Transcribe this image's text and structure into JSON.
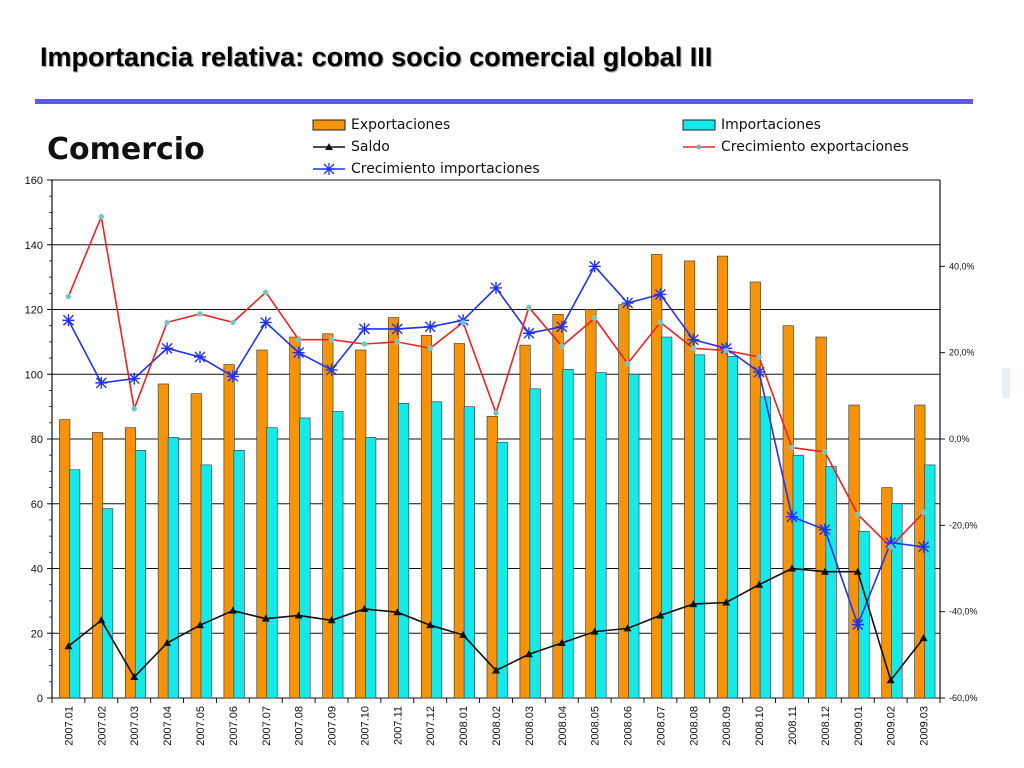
{
  "slide": {
    "title": "Importancia relativa: como socio comercial global III"
  },
  "chart_data": {
    "type": "bar",
    "title": "Comercio",
    "categories": [
      "2007.01",
      "2007.02",
      "2007.03",
      "2007.04",
      "2007.05",
      "2007.06",
      "2007.07",
      "2007.08",
      "2007.09",
      "2007.10",
      "2007.11",
      "2007.12",
      "2008.01",
      "2008.02",
      "2008.03",
      "2008.04",
      "2008.05",
      "2008.06",
      "2008.07",
      "2008.08",
      "2008.09",
      "2008.10",
      "2008.11",
      "2008.12",
      "2009.01",
      "2009.02",
      "2009.03"
    ],
    "left_axis": {
      "ylim": [
        0,
        160
      ],
      "ticks": [
        "0",
        "20",
        "40",
        "60",
        "80",
        "100",
        "120",
        "140",
        "160"
      ]
    },
    "right_axis": {
      "ylim": [
        -60,
        60
      ],
      "ticks": [
        "-60,0%",
        "-40,0%",
        "-20,0%",
        "0,0%",
        "20,0%",
        "40,0%"
      ]
    },
    "grid": true,
    "legend_position": "top",
    "series": [
      {
        "name": "Exportaciones",
        "kind": "bar",
        "axis": "left",
        "color": "#f5930b",
        "values": [
          86,
          82,
          83.5,
          97,
          94,
          103,
          107.5,
          111.5,
          112.5,
          107.5,
          117.5,
          112,
          109.5,
          87,
          109,
          118.5,
          120,
          121.5,
          137,
          135,
          136.5,
          128.5,
          115,
          111.5,
          90.5,
          65,
          90.5
        ]
      },
      {
        "name": "Importaciones",
        "kind": "bar",
        "axis": "left",
        "color": "#17e8e8",
        "values": [
          70.5,
          58.5,
          76.5,
          80.5,
          72,
          76.5,
          83.5,
          86.5,
          88.5,
          80.5,
          91,
          91.5,
          90,
          79,
          95.5,
          101.5,
          100.5,
          100,
          111.5,
          106,
          105.5,
          93,
          75,
          71.5,
          51.5,
          60,
          72
        ]
      },
      {
        "name": "Saldo",
        "kind": "line",
        "axis": "left",
        "color": "#111111",
        "values": [
          16,
          24,
          6.5,
          17,
          22.5,
          27,
          24.5,
          25.5,
          24,
          27.5,
          26.5,
          22.5,
          19.5,
          8.5,
          13.5,
          17,
          20.5,
          21.5,
          25.5,
          29,
          29.5,
          35,
          40,
          39,
          39,
          5.5,
          18.5
        ]
      },
      {
        "name": "Crecimiento exportaciones",
        "kind": "line",
        "axis": "right",
        "color": "#ee2222",
        "values": [
          33,
          51.5,
          7,
          27,
          29,
          27,
          34,
          23,
          23,
          22,
          22.5,
          21,
          27,
          6,
          30.5,
          21.5,
          28,
          17.5,
          27,
          21,
          20.5,
          19,
          -2,
          -3,
          -17.5,
          -25,
          -17
        ]
      },
      {
        "name": "Crecimiento importaciones",
        "kind": "line",
        "axis": "right",
        "color": "#2233ee",
        "values": [
          27.5,
          13,
          14,
          21,
          19,
          14.5,
          27,
          20,
          16,
          25.5,
          25.5,
          26,
          27.5,
          35,
          24.5,
          26,
          40,
          31.5,
          33.5,
          23,
          21,
          15.5,
          -18,
          -21,
          -43,
          -24,
          -25
        ]
      }
    ]
  }
}
